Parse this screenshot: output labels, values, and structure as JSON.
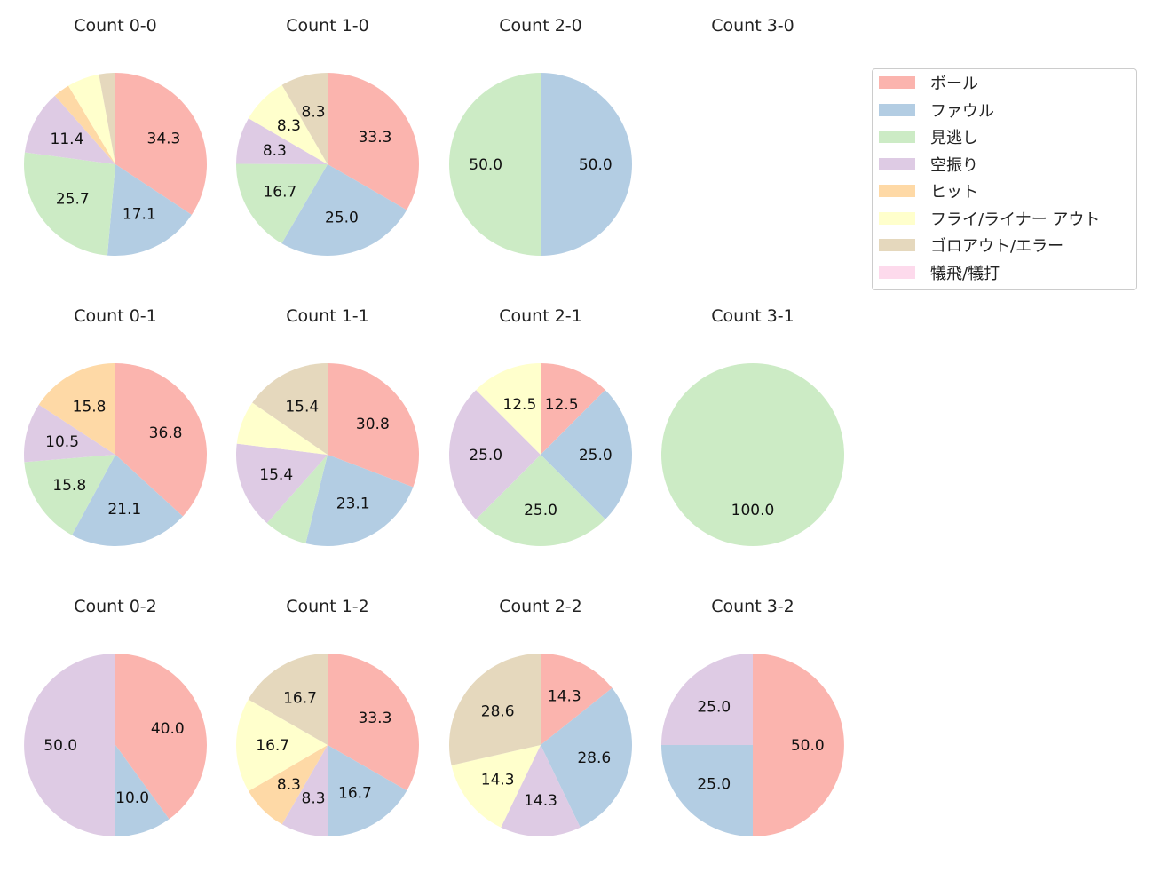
{
  "chart_data": {
    "type": "pie",
    "categories": [
      "ボール",
      "ファウル",
      "見逃し",
      "空振り",
      "ヒット",
      "フライ/ライナー アウト",
      "ゴロアウト/エラー",
      "犠飛/犠打"
    ],
    "colors": [
      "#fbb4ae",
      "#b3cde3",
      "#ccebc5",
      "#decbe4",
      "#fed9a6",
      "#ffffcc",
      "#e5d8bd",
      "#fddaec"
    ],
    "legend_position": "right",
    "pies": [
      {
        "title": "Count 0-0",
        "values": [
          34.3,
          17.1,
          25.7,
          11.4,
          2.9,
          5.7,
          2.9,
          0
        ]
      },
      {
        "title": "Count 1-0",
        "values": [
          33.3,
          25.0,
          16.7,
          8.3,
          0,
          8.3,
          8.3,
          0
        ]
      },
      {
        "title": "Count 2-0",
        "values": [
          0,
          50.0,
          50.0,
          0,
          0,
          0,
          0,
          0
        ]
      },
      {
        "title": "Count 3-0",
        "values": [
          0,
          0,
          0,
          0,
          0,
          0,
          0,
          0
        ]
      },
      {
        "title": "Count 0-1",
        "values": [
          36.8,
          21.1,
          15.8,
          10.5,
          15.8,
          0,
          0,
          0
        ]
      },
      {
        "title": "Count 1-1",
        "values": [
          30.8,
          23.1,
          7.7,
          15.4,
          0,
          7.7,
          15.4,
          0
        ]
      },
      {
        "title": "Count 2-1",
        "values": [
          12.5,
          25.0,
          25.0,
          25.0,
          0,
          12.5,
          0,
          0
        ]
      },
      {
        "title": "Count 3-1",
        "values": [
          0,
          0,
          100.0,
          0,
          0,
          0,
          0,
          0
        ]
      },
      {
        "title": "Count 0-2",
        "values": [
          40.0,
          10.0,
          0,
          50.0,
          0,
          0,
          0,
          0
        ]
      },
      {
        "title": "Count 1-2",
        "values": [
          33.3,
          16.7,
          0,
          8.3,
          8.3,
          16.7,
          16.7,
          0
        ]
      },
      {
        "title": "Count 2-2",
        "values": [
          14.3,
          28.6,
          0,
          14.3,
          0,
          14.3,
          28.6,
          0
        ]
      },
      {
        "title": "Count 3-2",
        "values": [
          50.0,
          25.0,
          0,
          25.0,
          0,
          0,
          0,
          0
        ]
      }
    ]
  }
}
